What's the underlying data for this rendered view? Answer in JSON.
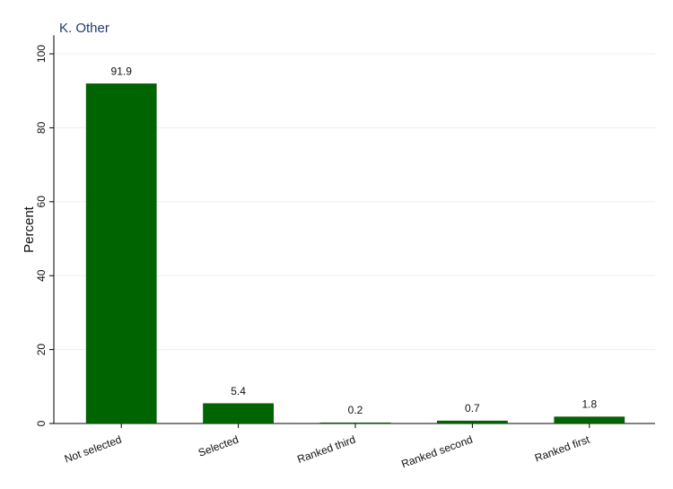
{
  "chart_data": {
    "type": "bar",
    "title": "K. Other",
    "y_label": "Percent",
    "categories": [
      "Not selected",
      "Selected",
      "Ranked third",
      "Ranked second",
      "Ranked first"
    ],
    "values": [
      91.9,
      5.4,
      0.2,
      0.7,
      1.8
    ],
    "color": "#006400",
    "ylim": [
      0,
      105
    ],
    "yticks": [
      0,
      20,
      40,
      60,
      80,
      100
    ],
    "grid": true
  }
}
